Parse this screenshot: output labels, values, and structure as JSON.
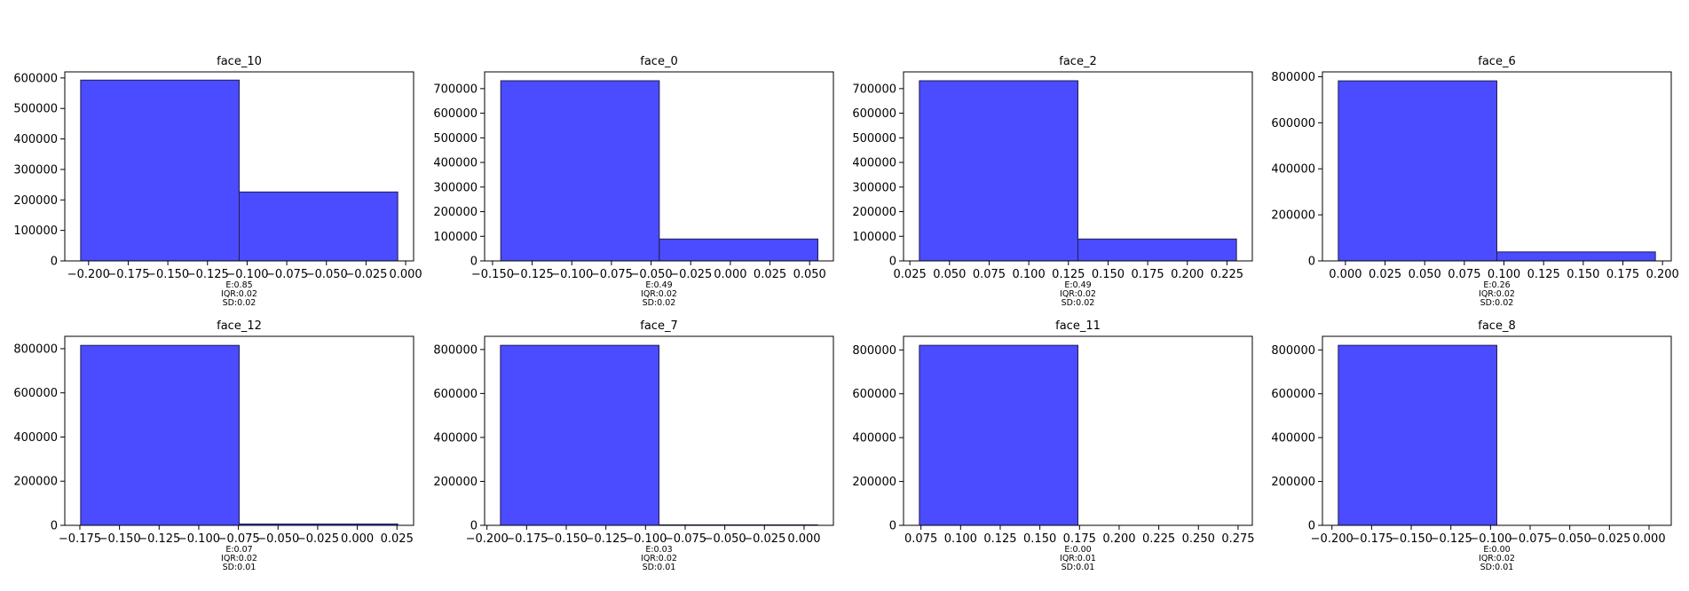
{
  "chart_data": [
    {
      "type": "bar",
      "title": "face_10",
      "bins": [
        [
          -0.205,
          -0.105
        ],
        [
          -0.105,
          -0.005
        ]
      ],
      "values": [
        593000,
        226000
      ],
      "xlim": [
        -0.215,
        0.005
      ],
      "ylim": [
        0,
        620000
      ],
      "xticks": [
        -0.2,
        -0.175,
        -0.15,
        -0.125,
        -0.1,
        -0.075,
        -0.05,
        -0.025,
        0.0
      ],
      "xtick_labels": [
        "−0.200",
        "−0.175",
        "−0.150",
        "−0.125",
        "−0.100",
        "−0.075",
        "−0.050",
        "−0.025",
        "0.000"
      ],
      "yticks": [
        0,
        100000,
        200000,
        300000,
        400000,
        500000,
        600000
      ],
      "stats": [
        "E:0.85",
        "IQR:0.02",
        "SD:0.02"
      ]
    },
    {
      "type": "bar",
      "title": "face_0",
      "bins": [
        [
          -0.1448,
          -0.0448
        ],
        [
          -0.0448,
          0.0552
        ]
      ],
      "values": [
        732000,
        89000
      ],
      "xlim": [
        -0.155,
        0.065
      ],
      "ylim": [
        0,
        768000
      ],
      "xticks": [
        -0.15,
        -0.125,
        -0.1,
        -0.075,
        -0.05,
        -0.025,
        0.0,
        0.025,
        0.05
      ],
      "xtick_labels": [
        "−0.150",
        "−0.125",
        "−0.100",
        "−0.075",
        "−0.050",
        "−0.025",
        "0.000",
        "0.025",
        "0.050"
      ],
      "yticks": [
        0,
        100000,
        200000,
        300000,
        400000,
        500000,
        600000,
        700000
      ],
      "stats": [
        "E:0.49",
        "IQR:0.02",
        "SD:0.02"
      ]
    },
    {
      "type": "bar",
      "title": "face_2",
      "bins": [
        [
          0.031,
          0.131
        ],
        [
          0.131,
          0.231
        ]
      ],
      "values": [
        732000,
        89000
      ],
      "xlim": [
        0.021,
        0.241
      ],
      "ylim": [
        0,
        768000
      ],
      "xticks": [
        0.025,
        0.05,
        0.075,
        0.1,
        0.125,
        0.15,
        0.175,
        0.2,
        0.225
      ],
      "xtick_labels": [
        "0.025",
        "0.050",
        "0.075",
        "0.100",
        "0.125",
        "0.150",
        "0.175",
        "0.200",
        "0.225"
      ],
      "yticks": [
        0,
        100000,
        200000,
        300000,
        400000,
        500000,
        600000,
        700000
      ],
      "stats": [
        "E:0.49",
        "IQR:0.02",
        "SD:0.02"
      ]
    },
    {
      "type": "bar",
      "title": "face_6",
      "bins": [
        [
          -0.0045,
          0.0955
        ],
        [
          0.0955,
          0.1955
        ]
      ],
      "values": [
        782000,
        39000
      ],
      "xlim": [
        -0.0145,
        0.2055
      ],
      "ylim": [
        0,
        821000
      ],
      "xticks": [
        0.0,
        0.025,
        0.05,
        0.075,
        0.1,
        0.125,
        0.15,
        0.175,
        0.2
      ],
      "xtick_labels": [
        "0.000",
        "0.025",
        "0.050",
        "0.075",
        "0.100",
        "0.125",
        "0.150",
        "0.175",
        "0.200"
      ],
      "yticks": [
        0,
        200000,
        400000,
        600000,
        800000
      ],
      "stats": [
        "E:0.26",
        "IQR:0.02",
        "SD:0.02"
      ]
    },
    {
      "type": "bar",
      "title": "face_12",
      "bins": [
        [
          -0.1745,
          -0.0745
        ],
        [
          -0.0745,
          0.0255
        ]
      ],
      "values": [
        815000,
        6000
      ],
      "xlim": [
        -0.1845,
        0.0355
      ],
      "ylim": [
        0,
        856000
      ],
      "xticks": [
        -0.175,
        -0.15,
        -0.125,
        -0.1,
        -0.075,
        -0.05,
        -0.025,
        0.0,
        0.025
      ],
      "xtick_labels": [
        "−0.175",
        "−0.150",
        "−0.125",
        "−0.100",
        "−0.075",
        "−0.050",
        "−0.025",
        "0.000",
        "0.025"
      ],
      "yticks": [
        0,
        200000,
        400000,
        600000,
        800000
      ],
      "stats": [
        "E:0.07",
        "IQR:0.02",
        "SD:0.01"
      ]
    },
    {
      "type": "bar",
      "title": "face_7",
      "bins": [
        [
          -0.1915,
          -0.0915
        ],
        [
          -0.0915,
          0.0085
        ]
      ],
      "values": [
        819000,
        2000
      ],
      "xlim": [
        -0.2015,
        0.0185
      ],
      "ylim": [
        0,
        860000
      ],
      "xticks": [
        -0.2,
        -0.175,
        -0.15,
        -0.125,
        -0.1,
        -0.075,
        -0.05,
        -0.025,
        0.0
      ],
      "xtick_labels": [
        "−0.200",
        "−0.175",
        "−0.150",
        "−0.125",
        "−0.100",
        "−0.075",
        "−0.050",
        "−0.025",
        "0.000"
      ],
      "yticks": [
        0,
        200000,
        400000,
        600000,
        800000
      ],
      "stats": [
        "E:0.03",
        "IQR:0.02",
        "SD:0.01"
      ]
    },
    {
      "type": "bar",
      "title": "face_11",
      "bins": [
        [
          0.074,
          0.174
        ],
        [
          0.174,
          0.274
        ]
      ],
      "values": [
        821000,
        0
      ],
      "xlim": [
        0.064,
        0.284
      ],
      "ylim": [
        0,
        862000
      ],
      "xticks": [
        0.075,
        0.1,
        0.125,
        0.15,
        0.175,
        0.2,
        0.225,
        0.25,
        0.275
      ],
      "xtick_labels": [
        "0.075",
        "0.100",
        "0.125",
        "0.150",
        "0.175",
        "0.200",
        "0.225",
        "0.250",
        "0.275"
      ],
      "yticks": [
        0,
        200000,
        400000,
        600000,
        800000
      ],
      "stats": [
        "E:0.00",
        "IQR:0.01",
        "SD:0.01"
      ]
    },
    {
      "type": "bar",
      "title": "face_8",
      "bins": [
        [
          -0.196,
          -0.096
        ],
        [
          -0.096,
          0.004
        ]
      ],
      "values": [
        821000,
        0
      ],
      "xlim": [
        -0.206,
        0.014
      ],
      "ylim": [
        0,
        862000
      ],
      "xticks": [
        -0.2,
        -0.175,
        -0.15,
        -0.125,
        -0.1,
        -0.075,
        -0.05,
        -0.025,
        0.0
      ],
      "xtick_labels": [
        "−0.200",
        "−0.175",
        "−0.150",
        "−0.125",
        "−0.100",
        "−0.075",
        "−0.050",
        "−0.025",
        "0.000"
      ],
      "yticks": [
        0,
        200000,
        400000,
        600000,
        800000
      ],
      "stats": [
        "E:0.00",
        "IQR:0.02",
        "SD:0.01"
      ]
    }
  ],
  "colors": {
    "bar_fill": "#4b4bff",
    "bar_edge": "#1f1f50"
  }
}
